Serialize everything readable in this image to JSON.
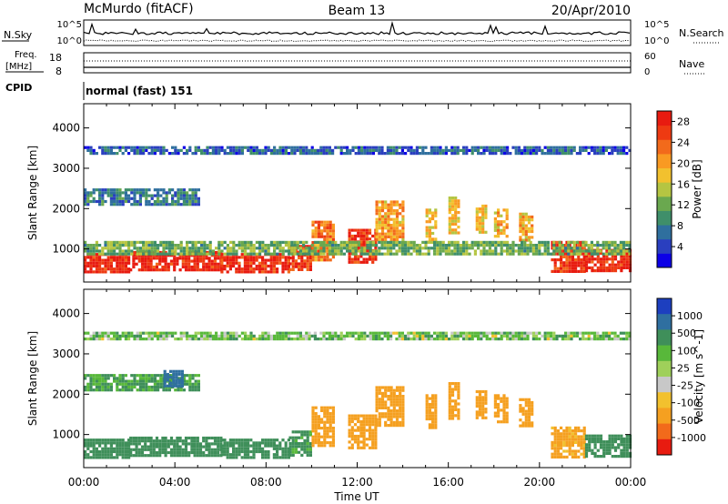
{
  "header": {
    "station": "McMurdo (fitACF)",
    "beam": "Beam 13",
    "date": "20/Apr/2010"
  },
  "strip": {
    "nsky_label": "N.Sky",
    "nsearch_label": "N.Search",
    "nsky_ticks": [
      "10^5",
      "10^0"
    ],
    "nsearch_ticks": [
      "10^5",
      "10^0"
    ],
    "freq_label_1": "Freq.",
    "freq_label_2": "[MHz]",
    "freq_ticks": [
      "18",
      "8"
    ],
    "nave_label": "Nave",
    "nave_ticks": [
      "60",
      "0"
    ],
    "cpid_label": "CPID",
    "cpid_value": "normal (fast) 151"
  },
  "chart_data": [
    {
      "type": "heatmap",
      "quantity": "Power",
      "ylabel": "Slant Range [km]",
      "xlabel": "Time UT",
      "x_ticks": [
        "00:00",
        "04:00",
        "08:00",
        "12:00",
        "16:00",
        "20:00",
        "00:00"
      ],
      "x_range_hours": [
        0,
        24
      ],
      "y_ticks": [
        "1000",
        "2000",
        "3000",
        "4000"
      ],
      "y_range_km": [
        180,
        4600
      ],
      "colorbar_label": "Power [dB]",
      "colorbar_ticks": [
        "4",
        "8",
        "12",
        "16",
        "20",
        "24",
        "28"
      ],
      "colorbar_range": [
        0,
        30
      ],
      "colorbar_colors": [
        "#0c00e6",
        "#2a3fbf",
        "#2f6f9e",
        "#3f8f6a",
        "#6aa84f",
        "#b5c542",
        "#f2c12e",
        "#f99a22",
        "#f26a1b",
        "#ee3a12",
        "#e81b10"
      ],
      "echo_regions": [
        {
          "t0": 0,
          "t1": 2,
          "r0": 450,
          "r1": 900,
          "value": 28
        },
        {
          "t0": 2,
          "t1": 6,
          "r0": 450,
          "r1": 950,
          "value": 28
        },
        {
          "t0": 6,
          "t1": 9,
          "r0": 400,
          "r1": 900,
          "value": 28
        },
        {
          "t0": 9,
          "t1": 10,
          "r0": 500,
          "r1": 1100,
          "value": 26
        },
        {
          "t0": 10,
          "t1": 11,
          "r0": 700,
          "r1": 1700,
          "value": 22
        },
        {
          "t0": 11.6,
          "t1": 12.8,
          "r0": 700,
          "r1": 1500,
          "value": 27
        },
        {
          "t0": 12.8,
          "t1": 14,
          "r0": 1200,
          "r1": 2200,
          "value": 20
        },
        {
          "t0": 15,
          "t1": 15.5,
          "r0": 1200,
          "r1": 2000,
          "value": 18
        },
        {
          "t0": 16,
          "t1": 16.5,
          "r0": 1400,
          "r1": 2300,
          "value": 18
        },
        {
          "t0": 17.2,
          "t1": 17.7,
          "r0": 1400,
          "r1": 2100,
          "value": 18
        },
        {
          "t0": 18,
          "t1": 18.6,
          "r0": 1300,
          "r1": 2000,
          "value": 19
        },
        {
          "t0": 19.1,
          "t1": 19.7,
          "r0": 1200,
          "r1": 1900,
          "value": 19
        },
        {
          "t0": 20.5,
          "t1": 22,
          "r0": 450,
          "r1": 1200,
          "value": 27
        },
        {
          "t0": 22,
          "t1": 24,
          "r0": 450,
          "r1": 1000,
          "value": 28
        },
        {
          "t0": 0,
          "t1": 5,
          "r0": 2100,
          "r1": 2500,
          "value": 8
        },
        {
          "t0": 0,
          "t1": 24,
          "r0": 3400,
          "r1": 3550,
          "value": 6
        },
        {
          "t0": 0,
          "t1": 24,
          "r0": 900,
          "r1": 1200,
          "value": 12
        }
      ]
    },
    {
      "type": "heatmap",
      "quantity": "Velocity",
      "ylabel": "Slant Range [km]",
      "xlabel": "Time UT",
      "x_ticks": [
        "00:00",
        "04:00",
        "08:00",
        "12:00",
        "16:00",
        "20:00",
        "00:00"
      ],
      "x_range_hours": [
        0,
        24
      ],
      "y_ticks": [
        "1000",
        "2000",
        "3000",
        "4000"
      ],
      "y_range_km": [
        180,
        4600
      ],
      "colorbar_label": "Velocity [m s^-1]",
      "colorbar_ticks": [
        "1000",
        "500",
        "100",
        "25",
        "-25",
        "-100",
        "-500",
        "-1000"
      ],
      "colorbar_colors": [
        "#1d3fbf",
        "#2f6fa0",
        "#3f8f5a",
        "#58b83a",
        "#9fd05a",
        "#c8c8c8",
        "#f2c12e",
        "#f5a020",
        "#f26a1b",
        "#e81b10"
      ],
      "echo_regions": [
        {
          "t0": 0,
          "t1": 2,
          "r0": 450,
          "r1": 900,
          "value": 300
        },
        {
          "t0": 2,
          "t1": 6,
          "r0": 450,
          "r1": 950,
          "value": 350
        },
        {
          "t0": 6,
          "t1": 9,
          "r0": 400,
          "r1": 900,
          "value": 300
        },
        {
          "t0": 9,
          "t1": 10,
          "r0": 500,
          "r1": 1100,
          "value": 150
        },
        {
          "t0": 10,
          "t1": 11,
          "r0": 700,
          "r1": 1700,
          "value": -200
        },
        {
          "t0": 11.6,
          "t1": 12.8,
          "r0": 700,
          "r1": 1500,
          "value": -250
        },
        {
          "t0": 12.8,
          "t1": 14,
          "r0": 1200,
          "r1": 2200,
          "value": -250
        },
        {
          "t0": 15,
          "t1": 15.5,
          "r0": 1200,
          "r1": 2000,
          "value": -200
        },
        {
          "t0": 16,
          "t1": 16.5,
          "r0": 1400,
          "r1": 2300,
          "value": -200
        },
        {
          "t0": 17.2,
          "t1": 17.7,
          "r0": 1400,
          "r1": 2100,
          "value": -200
        },
        {
          "t0": 18,
          "t1": 18.6,
          "r0": 1300,
          "r1": 2000,
          "value": -200
        },
        {
          "t0": 19.1,
          "t1": 19.7,
          "r0": 1200,
          "r1": 1900,
          "value": -200
        },
        {
          "t0": 20.5,
          "t1": 22,
          "r0": 450,
          "r1": 1200,
          "value": -150
        },
        {
          "t0": 22,
          "t1": 24,
          "r0": 450,
          "r1": 1000,
          "value": 200
        },
        {
          "t0": 0,
          "t1": 5,
          "r0": 2100,
          "r1": 2500,
          "value": 120
        },
        {
          "t0": 3.5,
          "t1": 4.3,
          "r0": 2200,
          "r1": 2600,
          "value": 700
        },
        {
          "t0": 0,
          "t1": 24,
          "r0": 3400,
          "r1": 3550,
          "value": 50
        }
      ]
    }
  ]
}
